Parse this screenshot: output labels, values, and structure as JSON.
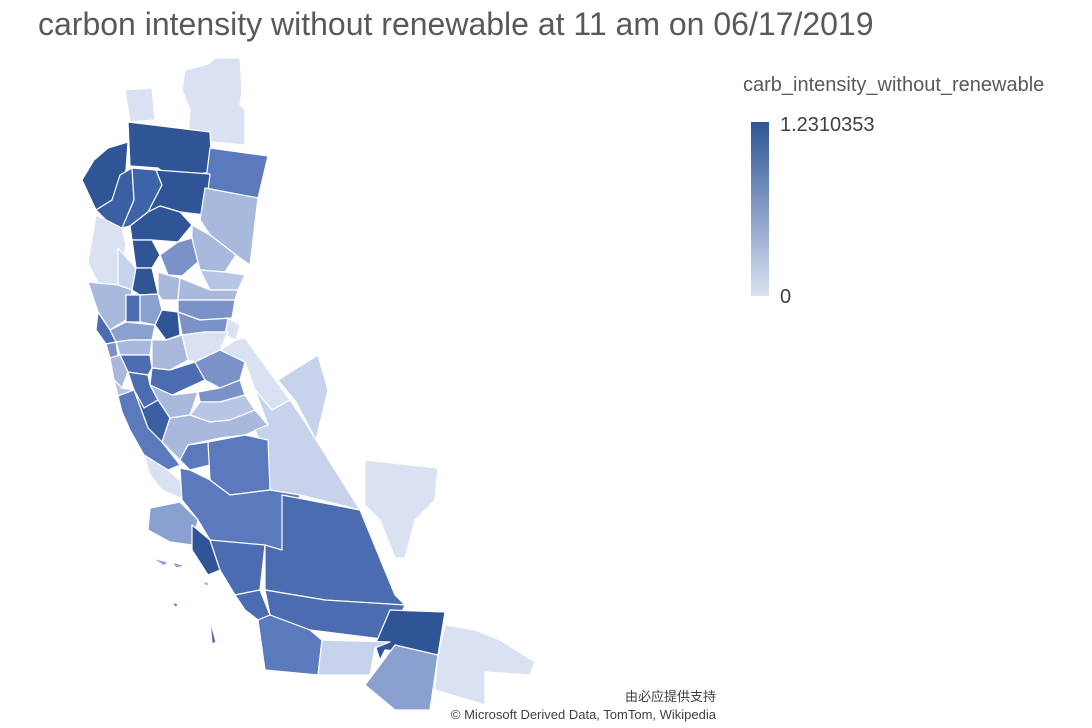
{
  "title": "carbon intensity without renewable at 11 am on 06/17/2019",
  "legend": {
    "title": "carb_intensity_without_renewable",
    "max_label": "1.2310353",
    "min_label": "0",
    "color_high": "#2f5597",
    "color_low": "#d9e1f2"
  },
  "attribution": {
    "provider_line": "由必应提供支持",
    "sources_line": "© Microsoft Derived Data, TomTom, Wikipedia"
  }
}
